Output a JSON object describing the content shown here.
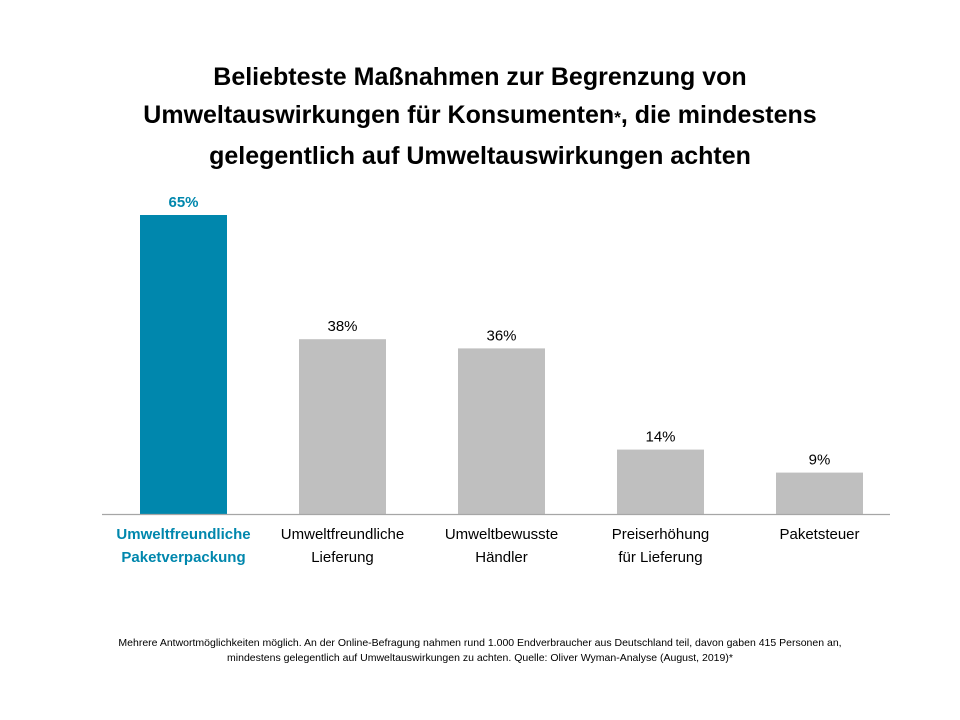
{
  "title": {
    "line1": "Beliebteste Maßnahmen zur Begrenzung von",
    "line2_prefix": "Umweltauswirkungen für Konsumenten",
    "line2_asterisk": "*",
    "line2_suffix": ", die mindestens",
    "line3": "gelegentlich auf Umweltauswirkungen achten"
  },
  "colors": {
    "highlight": "#0087AD",
    "bar": "#BFBFBF",
    "text": "#000000",
    "axis": "#A6A6A6"
  },
  "chart_data": {
    "type": "bar",
    "categories": [
      [
        "Umweltfreundliche",
        "Paketverpackung"
      ],
      [
        "Umweltfreundliche",
        "Lieferung"
      ],
      [
        "Umweltbewusste",
        "Händler"
      ],
      [
        "Preiserhöhung",
        "für Lieferung"
      ],
      [
        "Paketsteuer"
      ]
    ],
    "values": [
      65,
      38,
      36,
      14,
      9
    ],
    "value_labels": [
      "65%",
      "38%",
      "36%",
      "14%",
      "9%"
    ],
    "highlight_index": 0,
    "unit": "%",
    "ylim": [
      0,
      65
    ],
    "grid": false,
    "legend": "none",
    "xlabel": "",
    "ylabel": ""
  },
  "footnote": {
    "line1": "Mehrere Antwortmöglichkeiten möglich. An der Online-Befragung nahmen rund 1.000 Endverbraucher aus Deutschland teil, davon gaben 415 Personen an,",
    "line2": "mindestens gelegentlich auf Umweltauswirkungen zu achten. Quelle: Oliver Wyman-Analyse (August, 2019)*"
  }
}
